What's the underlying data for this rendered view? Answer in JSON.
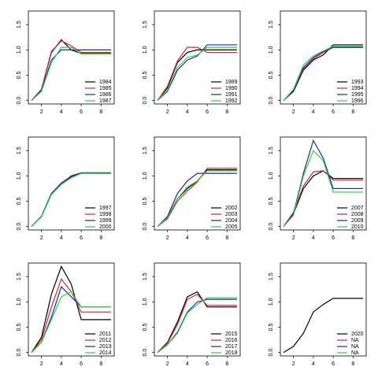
{
  "chart_data": [
    {
      "type": "line",
      "x": [
        1,
        2,
        3,
        4,
        5,
        6,
        7,
        8,
        9
      ],
      "xlim": [
        0.68,
        9.32
      ],
      "ylim": [
        -0.068,
        1.768
      ],
      "xticks": [
        2,
        4,
        6,
        8
      ],
      "yticks": [
        {
          "value": 0,
          "label": "0.0"
        },
        {
          "value": 0.5,
          "label": "0.5"
        },
        {
          "value": 1,
          "label": "1.0"
        },
        {
          "value": 1.5,
          "label": "1.5"
        }
      ],
      "legend": "bottomright",
      "series": [
        {
          "name": "1984",
          "color": "#000000",
          "values": [
            0,
            0.22,
            0.95,
            1.2,
            1.0,
            0.93,
            0.93,
            0.93,
            0.93
          ]
        },
        {
          "name": "1985",
          "color": "#df1f3f",
          "values": [
            0,
            0.22,
            0.97,
            1.18,
            1.08,
            0.95,
            0.95,
            0.95,
            0.95
          ]
        },
        {
          "name": "1986",
          "color": "#2020c8",
          "values": [
            0,
            0.2,
            0.8,
            1.0,
            1.0,
            1.0,
            1.0,
            1.0,
            1.0
          ]
        },
        {
          "name": "1987",
          "color": "#22dd22",
          "values": [
            0,
            0.18,
            0.75,
            1.05,
            1.05,
            0.92,
            0.92,
            0.92,
            0.92
          ]
        }
      ]
    },
    {
      "type": "line",
      "x": [
        1,
        2,
        3,
        4,
        5,
        6,
        7,
        8,
        9
      ],
      "xlim": [
        0.68,
        9.32
      ],
      "ylim": [
        -0.068,
        1.768
      ],
      "xticks": [
        2,
        4,
        6,
        8
      ],
      "yticks": [
        {
          "value": 0,
          "label": "0.0"
        },
        {
          "value": 0.5,
          "label": "0.5"
        },
        {
          "value": 1,
          "label": "1.0"
        },
        {
          "value": 1.5,
          "label": "1.5"
        }
      ],
      "legend": "bottomright",
      "series": [
        {
          "name": "1989",
          "color": "#000000",
          "values": [
            0,
            0.25,
            0.75,
            0.95,
            1.0,
            1.0,
            1.0,
            1.0,
            1.0
          ]
        },
        {
          "name": "1990",
          "color": "#df1f3f",
          "values": [
            0,
            0.28,
            0.78,
            1.05,
            1.05,
            0.95,
            0.95,
            0.95,
            0.95
          ]
        },
        {
          "name": "1991",
          "color": "#2020c8",
          "values": [
            0,
            0.18,
            0.6,
            0.8,
            0.88,
            1.1,
            1.1,
            1.1,
            1.1
          ]
        },
        {
          "name": "1992",
          "color": "#22dd22",
          "values": [
            0,
            0.2,
            0.65,
            0.85,
            0.9,
            1.05,
            1.05,
            1.05,
            1.05
          ]
        }
      ]
    },
    {
      "type": "line",
      "x": [
        1,
        2,
        3,
        4,
        5,
        6,
        7,
        8,
        9
      ],
      "xlim": [
        0.68,
        9.32
      ],
      "ylim": [
        -0.068,
        1.768
      ],
      "xticks": [
        2,
        4,
        6,
        8
      ],
      "yticks": [
        {
          "value": 0,
          "label": "0.0"
        },
        {
          "value": 0.5,
          "label": "0.5"
        },
        {
          "value": 1,
          "label": "1.0"
        },
        {
          "value": 1.5,
          "label": "1.5"
        }
      ],
      "legend": "bottomright",
      "series": [
        {
          "name": "1993",
          "color": "#000000",
          "values": [
            0,
            0.18,
            0.6,
            0.8,
            0.9,
            1.1,
            1.1,
            1.1,
            1.1
          ]
        },
        {
          "name": "1994",
          "color": "#df1f3f",
          "values": [
            0,
            0.2,
            0.62,
            0.82,
            0.95,
            1.05,
            1.05,
            1.05,
            1.05
          ]
        },
        {
          "name": "1995",
          "color": "#2020c8",
          "values": [
            0,
            0.2,
            0.65,
            0.85,
            0.97,
            1.05,
            1.05,
            1.05,
            1.05
          ]
        },
        {
          "name": "1996",
          "color": "#22dd22",
          "values": [
            0,
            0.22,
            0.7,
            0.88,
            0.98,
            1.07,
            1.07,
            1.07,
            1.07
          ]
        }
      ]
    },
    {
      "type": "line",
      "x": [
        1,
        2,
        3,
        4,
        5,
        6,
        7,
        8,
        9
      ],
      "xlim": [
        0.68,
        9.32
      ],
      "ylim": [
        -0.068,
        1.768
      ],
      "xticks": [
        2,
        4,
        6,
        8
      ],
      "yticks": [
        {
          "value": 0,
          "label": "0.0"
        },
        {
          "value": 0.5,
          "label": "0.5"
        },
        {
          "value": 1,
          "label": "1.0"
        },
        {
          "value": 1.5,
          "label": "1.5"
        }
      ],
      "legend": "bottomright",
      "series": [
        {
          "name": "1997",
          "color": "#000000",
          "values": [
            0,
            0.2,
            0.65,
            0.85,
            1.0,
            1.06,
            1.06,
            1.06,
            1.06
          ]
        },
        {
          "name": "1998",
          "color": "#df1f3f",
          "values": [
            0,
            0.2,
            0.64,
            0.84,
            0.98,
            1.05,
            1.05,
            1.05,
            1.05
          ]
        },
        {
          "name": "1999",
          "color": "#2020c8",
          "values": [
            0,
            0.2,
            0.65,
            0.86,
            0.99,
            1.06,
            1.06,
            1.06,
            1.06
          ]
        },
        {
          "name": "2000",
          "color": "#22dd22",
          "values": [
            0,
            0.19,
            0.63,
            0.83,
            0.96,
            1.05,
            1.05,
            1.05,
            1.05
          ]
        }
      ]
    },
    {
      "type": "line",
      "x": [
        1,
        2,
        3,
        4,
        5,
        6,
        7,
        8,
        9
      ],
      "xlim": [
        0.68,
        9.32
      ],
      "ylim": [
        -0.068,
        1.768
      ],
      "xticks": [
        2,
        4,
        6,
        8
      ],
      "yticks": [
        {
          "value": 0,
          "label": "0.0"
        },
        {
          "value": 0.5,
          "label": "0.5"
        },
        {
          "value": 1,
          "label": "1.0"
        },
        {
          "value": 1.5,
          "label": "1.5"
        }
      ],
      "legend": "bottomright",
      "series": [
        {
          "name": "2002",
          "color": "#000000",
          "values": [
            0,
            0.18,
            0.55,
            0.75,
            0.9,
            1.12,
            1.12,
            1.12,
            1.12
          ]
        },
        {
          "name": "2003",
          "color": "#df1f3f",
          "values": [
            0,
            0.15,
            0.5,
            0.7,
            0.88,
            1.15,
            1.15,
            1.15,
            1.15
          ]
        },
        {
          "name": "2004",
          "color": "#2020c8",
          "values": [
            0,
            0.2,
            0.65,
            0.9,
            1.05,
            1.05,
            1.05,
            1.05,
            1.05
          ]
        },
        {
          "name": "2005",
          "color": "#22dd22",
          "values": [
            0,
            0.17,
            0.55,
            0.78,
            0.9,
            1.1,
            1.1,
            1.1,
            1.1
          ]
        }
      ]
    },
    {
      "type": "line",
      "x": [
        1,
        2,
        3,
        4,
        5,
        6,
        7,
        8,
        9
      ],
      "xlim": [
        0.68,
        9.32
      ],
      "ylim": [
        -0.068,
        1.768
      ],
      "xticks": [
        2,
        4,
        6,
        8
      ],
      "yticks": [
        {
          "value": 0,
          "label": "0.0"
        },
        {
          "value": 0.5,
          "label": "0.5"
        },
        {
          "value": 1,
          "label": "1.0"
        },
        {
          "value": 1.5,
          "label": "1.5"
        }
      ],
      "legend": "bottomright",
      "series": [
        {
          "name": "2007",
          "color": "#000000",
          "values": [
            0,
            0.25,
            0.75,
            1.0,
            1.1,
            0.95,
            0.95,
            0.95,
            0.95
          ]
        },
        {
          "name": "2008",
          "color": "#df1f3f",
          "values": [
            0,
            0.28,
            0.8,
            1.08,
            1.1,
            0.92,
            0.92,
            0.92,
            0.92
          ]
        },
        {
          "name": "2009",
          "color": "#2020c8",
          "values": [
            0,
            0.25,
            1.05,
            1.7,
            1.35,
            0.75,
            0.75,
            0.75,
            0.75
          ]
        },
        {
          "name": "2010",
          "color": "#22dd22",
          "values": [
            0,
            0.22,
            1.0,
            1.5,
            1.3,
            0.68,
            0.68,
            0.68,
            0.68
          ]
        }
      ]
    },
    {
      "type": "line",
      "x": [
        1,
        2,
        3,
        4,
        5,
        6,
        7,
        8,
        9
      ],
      "xlim": [
        0.68,
        9.32
      ],
      "ylim": [
        -0.068,
        1.768
      ],
      "xticks": [
        2,
        4,
        6,
        8
      ],
      "yticks": [
        {
          "value": 0,
          "label": "0.0"
        },
        {
          "value": 0.5,
          "label": "0.5"
        },
        {
          "value": 1,
          "label": "1.0"
        },
        {
          "value": 1.5,
          "label": "1.5"
        }
      ],
      "legend": "bottomright",
      "series": [
        {
          "name": "2011",
          "color": "#000000",
          "values": [
            0,
            0.3,
            1.15,
            1.7,
            1.35,
            0.65,
            0.65,
            0.65,
            0.65
          ]
        },
        {
          "name": "2012",
          "color": "#df1f3f",
          "values": [
            0,
            0.25,
            0.9,
            1.45,
            1.2,
            0.8,
            0.8,
            0.8,
            0.8
          ]
        },
        {
          "name": "2013",
          "color": "#2020c8",
          "values": [
            0,
            0.2,
            0.7,
            1.3,
            1.1,
            0.9,
            0.9,
            0.9,
            0.9
          ]
        },
        {
          "name": "2014",
          "color": "#22dd22",
          "values": [
            0,
            0.2,
            0.65,
            1.1,
            1.2,
            0.9,
            0.9,
            0.9,
            0.9
          ]
        }
      ]
    },
    {
      "type": "line",
      "x": [
        1,
        2,
        3,
        4,
        5,
        6,
        7,
        8,
        9
      ],
      "xlim": [
        0.68,
        9.32
      ],
      "ylim": [
        -0.068,
        1.768
      ],
      "xticks": [
        2,
        4,
        6,
        8
      ],
      "yticks": [
        {
          "value": 0,
          "label": "0.0"
        },
        {
          "value": 0.5,
          "label": "0.5"
        },
        {
          "value": 1,
          "label": "1.0"
        },
        {
          "value": 1.5,
          "label": "1.5"
        }
      ],
      "legend": "bottomright",
      "series": [
        {
          "name": "2015",
          "color": "#000000",
          "values": [
            0,
            0.2,
            0.6,
            1.1,
            1.2,
            0.9,
            0.9,
            0.9,
            0.9
          ]
        },
        {
          "name": "2016",
          "color": "#df1f3f",
          "values": [
            0,
            0.18,
            0.55,
            1.05,
            1.15,
            0.93,
            0.93,
            0.93,
            0.93
          ]
        },
        {
          "name": "2017",
          "color": "#2020c8",
          "values": [
            0,
            0.15,
            0.4,
            0.8,
            1.0,
            1.05,
            1.05,
            1.05,
            1.05
          ]
        },
        {
          "name": "2018",
          "color": "#22dd22",
          "values": [
            0,
            0.15,
            0.38,
            0.78,
            0.95,
            1.08,
            1.08,
            1.08,
            1.08
          ]
        }
      ]
    },
    {
      "type": "line",
      "x": [
        1,
        2,
        3,
        4,
        5,
        6,
        7,
        8,
        9
      ],
      "xlim": [
        0.68,
        9.32
      ],
      "ylim": [
        -0.068,
        1.768
      ],
      "xticks": [
        2,
        4,
        6,
        8
      ],
      "yticks": [
        {
          "value": 0,
          "label": "0.0"
        },
        {
          "value": 0.5,
          "label": "0.5"
        },
        {
          "value": 1,
          "label": "1.0"
        },
        {
          "value": 1.5,
          "label": "1.5"
        }
      ],
      "legend": "bottomright",
      "series": [
        {
          "name": "2020",
          "color": "#000000",
          "values": [
            0,
            0.12,
            0.38,
            0.8,
            0.95,
            1.07,
            1.07,
            1.07,
            1.07
          ]
        },
        {
          "name": "NA",
          "color": "#df1f3f",
          "values": [
            null,
            null,
            null,
            null,
            null,
            null,
            null,
            null,
            null
          ]
        },
        {
          "name": "NA",
          "color": "#2020c8",
          "values": [
            null,
            null,
            null,
            null,
            null,
            null,
            null,
            null,
            null
          ]
        },
        {
          "name": "NA",
          "color": "#22dd22",
          "values": [
            null,
            null,
            null,
            null,
            null,
            null,
            null,
            null,
            null
          ]
        }
      ]
    }
  ]
}
